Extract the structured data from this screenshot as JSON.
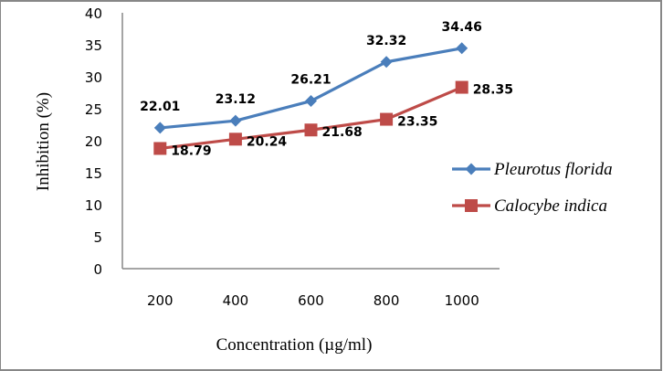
{
  "chart_data": {
    "type": "line",
    "title": "",
    "xlabel": "Concentration (µg/ml)",
    "ylabel": "Inhibition (%)",
    "categories": [
      "200",
      "400",
      "600",
      "800",
      "1000"
    ],
    "ylim": [
      0,
      40
    ],
    "yticks": [
      "0",
      "5",
      "10",
      "15",
      "20",
      "25",
      "30",
      "35",
      "40"
    ],
    "grid": false,
    "legend_position": "right",
    "series": [
      {
        "name": "Pleurotus florida",
        "color": "#4A7EBB",
        "marker": "diamond",
        "values": [
          22.01,
          23.12,
          26.21,
          32.32,
          34.46
        ],
        "labels": [
          "22.01",
          "23.12",
          "26.21",
          "32.32",
          "34.46"
        ],
        "label_position": "above"
      },
      {
        "name": "Calocybe indica",
        "color": "#BE4B48",
        "marker": "square",
        "values": [
          18.79,
          20.24,
          21.68,
          23.35,
          28.35
        ],
        "labels": [
          "18.79",
          "20.24",
          "21.68",
          "23.35",
          "28.35"
        ],
        "label_position": "right"
      }
    ]
  }
}
